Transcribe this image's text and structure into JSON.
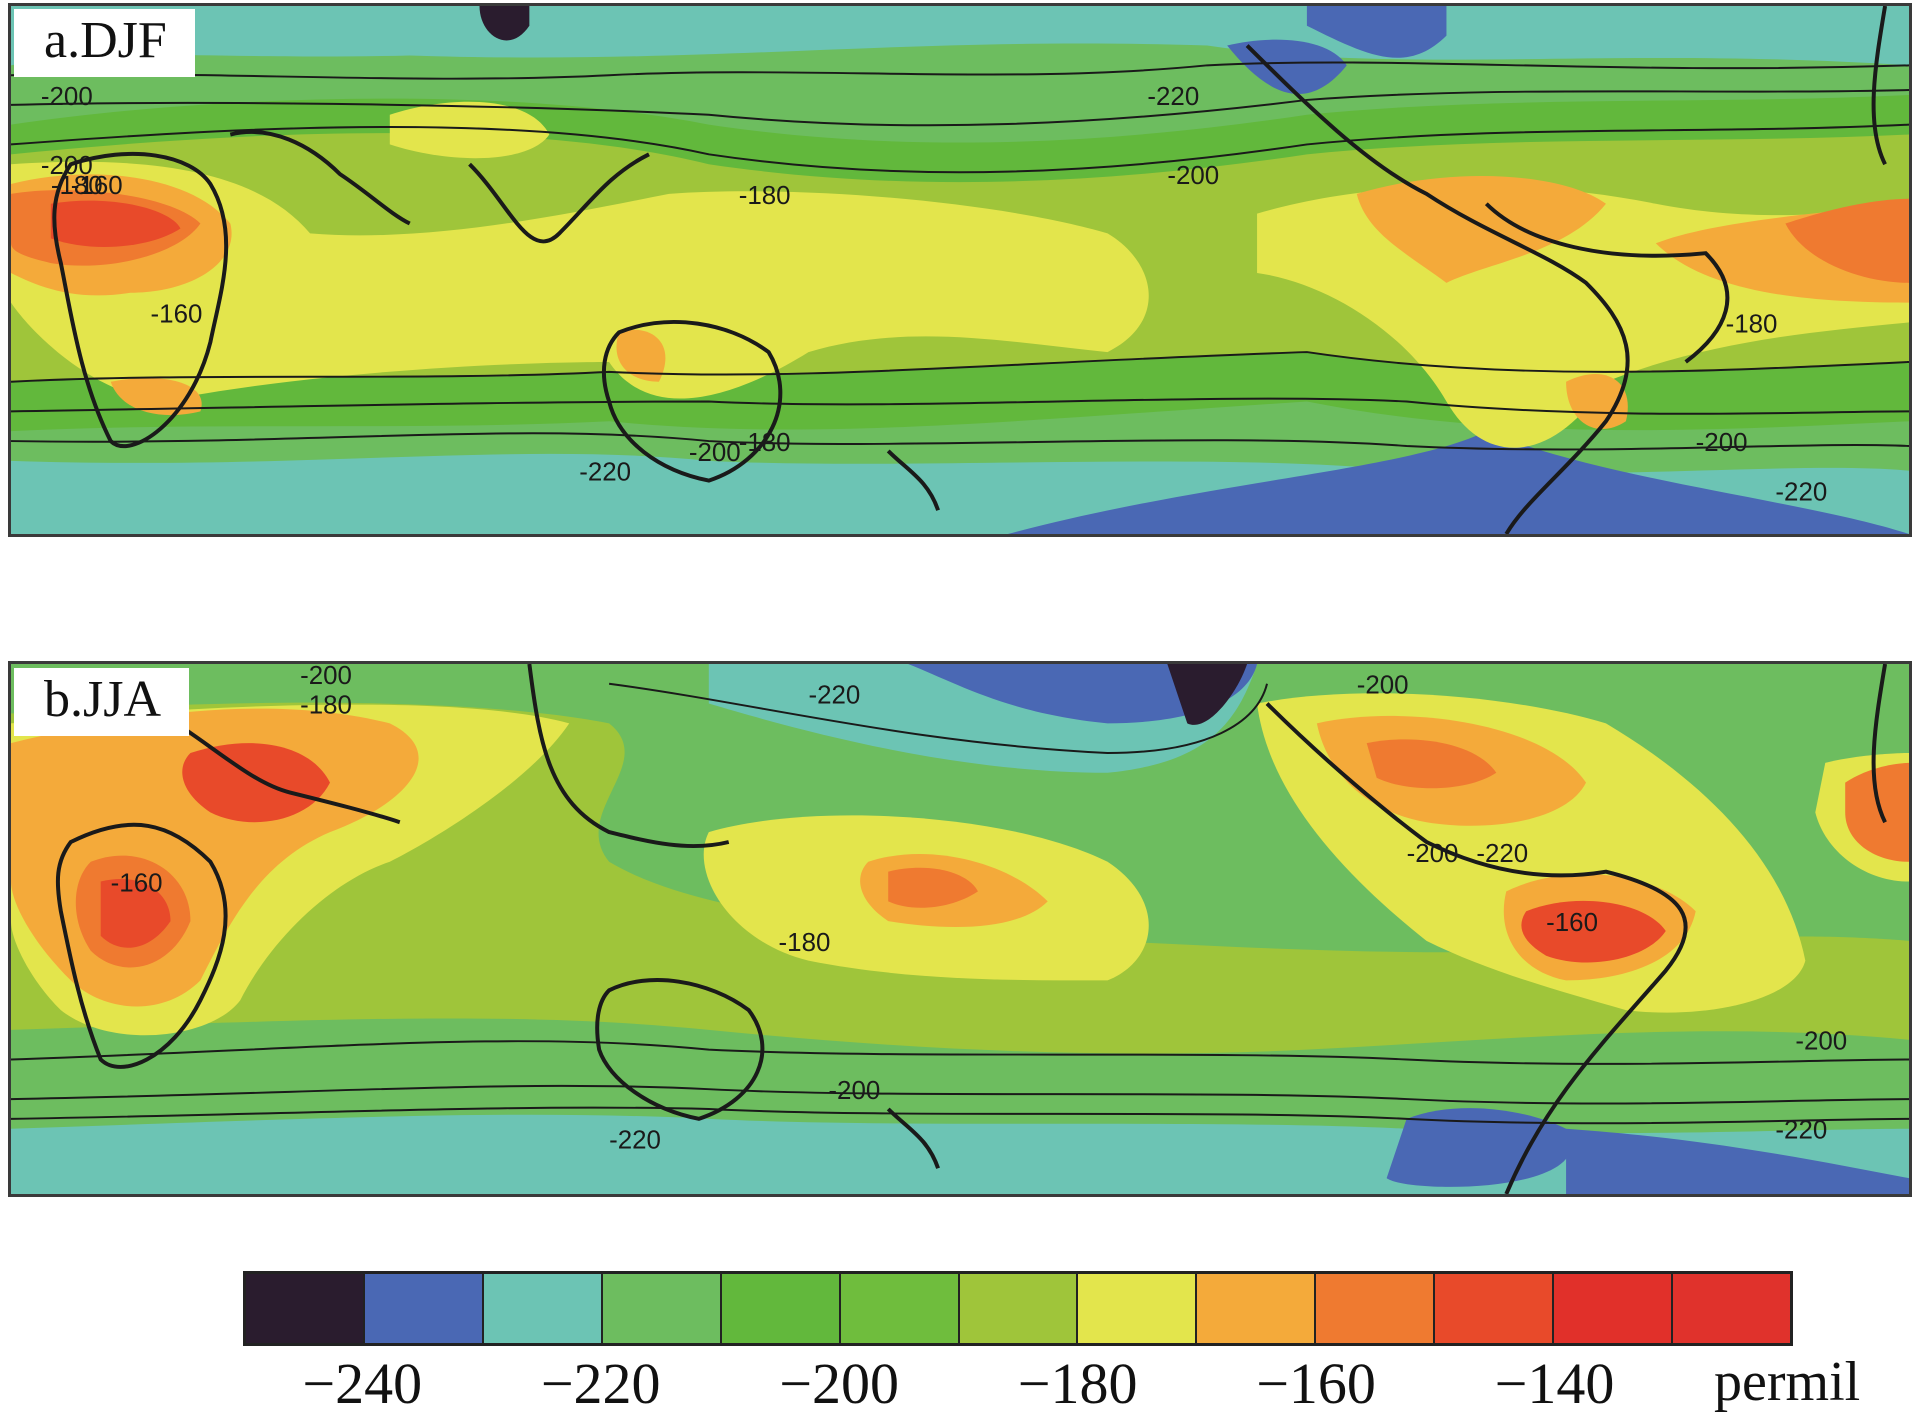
{
  "panels": [
    {
      "label": "a.DJF",
      "contour_labels": [
        "-200",
        "-200",
        "-180",
        "-160",
        "-160",
        "-220",
        "-200",
        "-180",
        "-180",
        "-200",
        "-220",
        "-180",
        "-200",
        "-220"
      ]
    },
    {
      "label": "b.JJA",
      "contour_labels": [
        "-200",
        "-180",
        "-160",
        "-220",
        "-200",
        "-160",
        "-180",
        "-200",
        "-220",
        "-200",
        "-220",
        "-200",
        "-220"
      ]
    }
  ],
  "colorbar": {
    "colors": [
      "#2a1c2e",
      "#4a68b4",
      "#6cc4b4",
      "#6dbd5f",
      "#62b83c",
      "#6fbd3d",
      "#9fc53a",
      "#e3e54c",
      "#f4aa3a",
      "#ef7a30",
      "#e84a2a",
      "#e1302a",
      "#e0322c"
    ],
    "tick_labels": [
      "−240",
      "−220",
      "−200",
      "−180",
      "−160",
      "−140"
    ],
    "unit": "permil"
  }
}
